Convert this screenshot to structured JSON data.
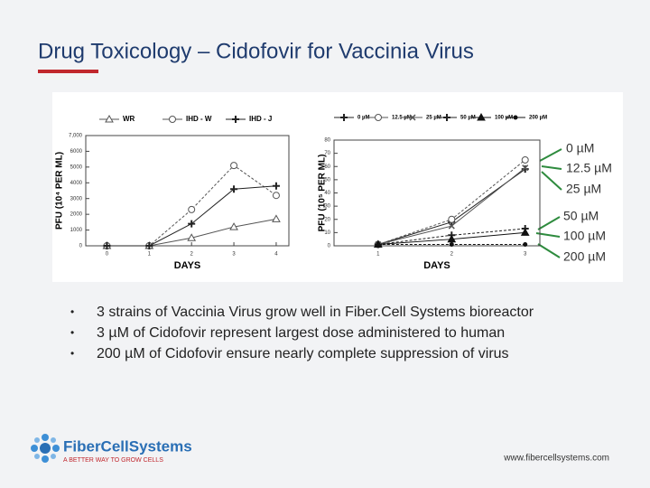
{
  "title": "Drug Toxicology – Cidofovir for Vaccinia Virus",
  "slide": {
    "bullets": [
      "3 strains of Vaccinia Virus grow well in Fiber.Cell Systems bioreactor",
      "3 µM of Cidofovir represent largest dose administered to human",
      "200 µM of Cidofovir ensure nearly complete suppression of virus"
    ],
    "logo_name": "FiberCellSystems",
    "logo_tagline": "A BETTER WAY TO GROW CELLS",
    "website": "www.fibercellsystems.com"
  },
  "chart_data": [
    {
      "type": "line",
      "xlabel": "DAYS",
      "ylabel": "PFU (10⁴ PER ML)",
      "x": [
        0,
        1,
        2,
        3,
        4
      ],
      "xlim": [
        -0.5,
        4.3
      ],
      "xticks": [
        0,
        1,
        2,
        3,
        4
      ],
      "ylim": [
        0,
        7000
      ],
      "yticks": [
        0,
        1000,
        2000,
        3000,
        4000,
        5000,
        6000,
        {
          "value": 7000,
          "label": "7,000"
        }
      ],
      "series": [
        {
          "name": "WR",
          "color": "#555555",
          "marker": "triangle",
          "values": [
            0,
            0,
            500,
            1200,
            1700
          ]
        },
        {
          "name": "IHD - W",
          "color": "#555555",
          "marker": "circle",
          "values": [
            0,
            0,
            2300,
            5100,
            3200
          ]
        },
        {
          "name": "IHD - J",
          "color": "#222222",
          "marker": "plus",
          "values": [
            0,
            0,
            1400,
            3600,
            3800
          ]
        }
      ]
    },
    {
      "type": "line",
      "xlabel": "DAYS",
      "ylabel": "PFU (10⁵ PER ML)",
      "x": [
        1,
        2,
        3
      ],
      "xlim": [
        0.4,
        3.2
      ],
      "xticks": [
        1,
        2,
        3
      ],
      "ylim": [
        0,
        80
      ],
      "yticks": [
        0,
        10,
        20,
        30,
        40,
        50,
        60,
        70,
        80
      ],
      "series": [
        {
          "name": "0 µM",
          "color": "#222222",
          "marker": "plus",
          "values": [
            1,
            18,
            58
          ]
        },
        {
          "name": "12.5 µM",
          "color": "#555555",
          "marker": "circle",
          "values": [
            1,
            20,
            65
          ]
        },
        {
          "name": "25 µM",
          "color": "#555555",
          "marker": "cross",
          "values": [
            1,
            15,
            59
          ]
        },
        {
          "name": "50 µM",
          "color": "#222222",
          "marker": "plus",
          "values": [
            1,
            8,
            13
          ]
        },
        {
          "name": "100 µM",
          "color": "#111111",
          "marker": "filled-triangle",
          "values": [
            1,
            5,
            10
          ]
        },
        {
          "name": "200 µM",
          "color": "#111111",
          "marker": "dot",
          "values": [
            1,
            1,
            1
          ]
        }
      ]
    }
  ]
}
